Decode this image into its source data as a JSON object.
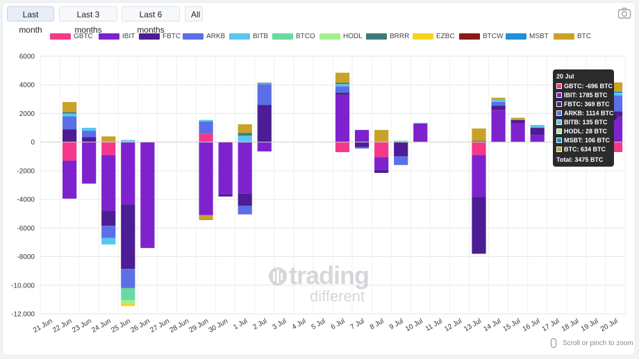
{
  "range_buttons": [
    "Last month",
    "Last 3 months",
    "Last 6 months",
    "All"
  ],
  "active_range": 0,
  "camera_icon": "camera-icon",
  "zoom_hint": "Scroll or pinch to zoom",
  "watermark": {
    "line1": "trading",
    "line2": "different"
  },
  "tooltip": {
    "title": "20 Jul",
    "rows": [
      {
        "text": "GBTC: -696 BTC",
        "color": "#f5388a"
      },
      {
        "text": "IBIT: 1785 BTC",
        "color": "#7e22ce"
      },
      {
        "text": "FBTC: 369 BTC",
        "color": "#4c1d95"
      },
      {
        "text": "ARKB: 1114 BTC",
        "color": "#5b6fe6"
      },
      {
        "text": "BITB: 135 BTC",
        "color": "#56c7ef"
      },
      {
        "text": "HODL: 28 BTC",
        "color": "#a3f08a"
      },
      {
        "text": "MSBT: 106 BTC",
        "color": "#1f8fd6"
      },
      {
        "text": "BTC: 634 BTC",
        "color": "#c9a227"
      }
    ],
    "total": "Total: 3475 BTC"
  },
  "chart_data": {
    "type": "bar",
    "stacked": true,
    "ylim": [
      -12000,
      6000
    ],
    "yticks": [
      6000,
      4000,
      2000,
      0,
      -2000,
      -4000,
      -6000,
      -8000,
      -10000,
      -12000
    ],
    "ytick_labels": [
      "6000",
      "4000",
      "2000",
      "0",
      "-2000",
      "-4000",
      "-6000",
      "-8000",
      "-10.000",
      "-12.000"
    ],
    "grid": true,
    "legend_position": "top",
    "categories": [
      "21 Jun",
      "22 Jun",
      "23 Jun",
      "24 Jun",
      "25 Jun",
      "26 Jun",
      "27 Jun",
      "28 Jun",
      "29 Jun",
      "30 Jun",
      "1 Jul",
      "2 Jul",
      "3 Jul",
      "4 Jul",
      "5 Jul",
      "6 Jul",
      "7 Jul",
      "8 Jul",
      "9 Jul",
      "10 Jul",
      "11 Jul",
      "12 Jul",
      "13 Jul",
      "14 Jul",
      "15 Jul",
      "16 Jul",
      "17 Jul",
      "18 Jul",
      "19 Jul",
      "20 Jul"
    ],
    "series": [
      {
        "name": "GBTC",
        "color": "#f5388a",
        "values": [
          0,
          -1300,
          0,
          -900,
          0,
          0,
          0,
          0,
          600,
          0,
          0,
          0,
          0,
          0,
          0,
          -700,
          0,
          -1050,
          0,
          0,
          0,
          0,
          -900,
          0,
          0,
          0,
          0,
          0,
          0,
          -696
        ]
      },
      {
        "name": "IBIT",
        "color": "#7e22ce",
        "values": [
          0,
          -2650,
          -2900,
          -3900,
          -4350,
          -7400,
          0,
          0,
          -5100,
          -3650,
          -3600,
          -650,
          0,
          0,
          0,
          3300,
          850,
          -900,
          0,
          1300,
          0,
          0,
          -2950,
          2250,
          1300,
          500,
          0,
          0,
          0,
          1785
        ]
      },
      {
        "name": "FBTC",
        "color": "#4c1d95",
        "values": [
          0,
          900,
          350,
          -1050,
          -4500,
          0,
          0,
          0,
          0,
          -150,
          -850,
          2600,
          0,
          0,
          0,
          150,
          -350,
          -200,
          -1000,
          0,
          0,
          0,
          -3950,
          300,
          250,
          500,
          0,
          0,
          0,
          369
        ]
      },
      {
        "name": "ARKB",
        "color": "#5b6fe6",
        "values": [
          0,
          900,
          450,
          -850,
          -1350,
          0,
          0,
          0,
          850,
          0,
          -600,
          1450,
          0,
          0,
          0,
          450,
          -100,
          0,
          -600,
          0,
          0,
          0,
          0,
          250,
          0,
          0,
          0,
          0,
          0,
          1114
        ]
      },
      {
        "name": "BITB",
        "color": "#56c7ef",
        "values": [
          0,
          200,
          200,
          -450,
          150,
          0,
          0,
          0,
          100,
          0,
          450,
          50,
          0,
          0,
          0,
          150,
          0,
          0,
          0,
          50,
          0,
          0,
          0,
          150,
          0,
          200,
          0,
          0,
          0,
          135
        ]
      },
      {
        "name": "BTCO",
        "color": "#6ad8a0",
        "values": [
          0,
          0,
          0,
          0,
          -850,
          0,
          0,
          0,
          0,
          0,
          0,
          0,
          0,
          0,
          0,
          0,
          0,
          0,
          100,
          0,
          0,
          0,
          0,
          0,
          0,
          0,
          0,
          0,
          0,
          0
        ]
      },
      {
        "name": "HODL",
        "color": "#a3f08a",
        "values": [
          0,
          0,
          0,
          0,
          -250,
          0,
          0,
          0,
          0,
          0,
          0,
          0,
          0,
          0,
          0,
          0,
          0,
          0,
          0,
          0,
          0,
          0,
          0,
          0,
          0,
          0,
          0,
          0,
          0,
          28
        ]
      },
      {
        "name": "BRRR",
        "color": "#3f7a78",
        "values": [
          0,
          100,
          0,
          0,
          0,
          0,
          0,
          0,
          0,
          0,
          200,
          50,
          0,
          0,
          0,
          100,
          0,
          0,
          0,
          0,
          0,
          0,
          100,
          0,
          0,
          0,
          0,
          0,
          0,
          0
        ]
      },
      {
        "name": "EZBC",
        "color": "#f7d21c",
        "values": [
          0,
          0,
          0,
          0,
          -150,
          0,
          0,
          0,
          0,
          0,
          0,
          0,
          0,
          0,
          0,
          0,
          0,
          0,
          0,
          0,
          0,
          0,
          0,
          0,
          0,
          0,
          0,
          0,
          0,
          0
        ]
      },
      {
        "name": "BTCW",
        "color": "#8b1a1a",
        "values": [
          0,
          0,
          0,
          0,
          0,
          0,
          0,
          0,
          0,
          0,
          0,
          0,
          0,
          0,
          0,
          0,
          0,
          0,
          0,
          0,
          0,
          0,
          0,
          0,
          0,
          0,
          0,
          0,
          0,
          0
        ]
      },
      {
        "name": "MSBT",
        "color": "#1f8fd6",
        "values": [
          0,
          0,
          0,
          0,
          0,
          0,
          0,
          0,
          0,
          0,
          0,
          0,
          0,
          0,
          0,
          0,
          0,
          0,
          0,
          0,
          0,
          0,
          0,
          0,
          0,
          0,
          0,
          0,
          0,
          106
        ]
      },
      {
        "name": "BTC",
        "color": "#c9a227",
        "values": [
          0,
          700,
          0,
          400,
          0,
          0,
          0,
          0,
          -350,
          0,
          600,
          0,
          0,
          0,
          0,
          700,
          0,
          850,
          0,
          0,
          0,
          0,
          850,
          150,
          150,
          0,
          0,
          0,
          0,
          634
        ]
      }
    ]
  }
}
